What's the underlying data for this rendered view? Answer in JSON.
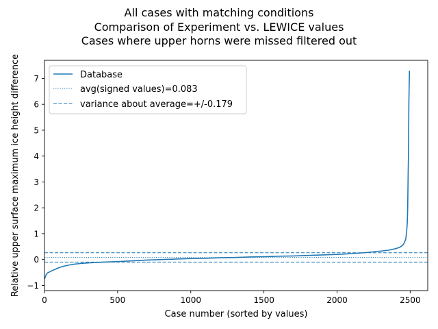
{
  "chart_data": {
    "type": "line",
    "title_lines": [
      "All cases with matching conditions",
      "Comparison of Experiment vs. LEWICE values",
      "Cases where upper horns were missed filtered out"
    ],
    "xlabel": "Case number (sorted by values)",
    "ylabel": "Relative upper surface maximum ice height difference",
    "xlim": [
      0,
      2620
    ],
    "ylim": [
      -1.2,
      7.7
    ],
    "xticks": [
      0,
      500,
      1000,
      1500,
      2000,
      2500
    ],
    "yticks": [
      -1,
      0,
      1,
      2,
      3,
      4,
      5,
      6,
      7
    ],
    "grid": false,
    "legend_position": "upper-left",
    "legend": [
      {
        "label": "Database",
        "style": "solid"
      },
      {
        "label": "avg(signed values)=0.083",
        "style": "dotted"
      },
      {
        "label": "variance about average=+/-0.179",
        "style": "dashed"
      }
    ],
    "color": "#1f77b4",
    "reference_lines": [
      {
        "y": 0.083,
        "style": "dotted"
      },
      {
        "y": 0.262,
        "style": "dashed"
      },
      {
        "y": -0.096,
        "style": "dashed"
      }
    ],
    "series": [
      {
        "name": "Database",
        "x": [
          0,
          5,
          10,
          20,
          40,
          60,
          80,
          100,
          130,
          160,
          200,
          250,
          300,
          400,
          500,
          600,
          700,
          800,
          900,
          1000,
          1100,
          1200,
          1300,
          1400,
          1500,
          1600,
          1700,
          1800,
          1900,
          2000,
          2100,
          2200,
          2250,
          2300,
          2350,
          2400,
          2430,
          2450,
          2460,
          2470,
          2475,
          2480,
          2483,
          2486,
          2489,
          2491,
          2493,
          2495
        ],
        "y": [
          -0.75,
          -0.68,
          -0.6,
          -0.52,
          -0.46,
          -0.41,
          -0.36,
          -0.31,
          -0.26,
          -0.22,
          -0.18,
          -0.15,
          -0.13,
          -0.1,
          -0.08,
          -0.05,
          -0.02,
          0.0,
          0.02,
          0.04,
          0.05,
          0.07,
          0.08,
          0.1,
          0.11,
          0.13,
          0.14,
          0.16,
          0.18,
          0.2,
          0.23,
          0.27,
          0.3,
          0.33,
          0.36,
          0.42,
          0.48,
          0.56,
          0.65,
          0.8,
          1.05,
          1.4,
          2.0,
          3.3,
          4.3,
          6.0,
          6.7,
          7.3
        ]
      }
    ]
  }
}
